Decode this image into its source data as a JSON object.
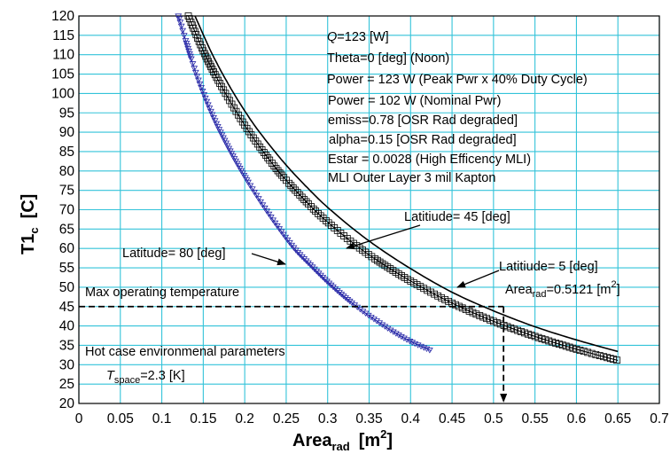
{
  "chart_data": {
    "type": "line",
    "xlabel": "Area",
    "xlabel_sub": "rad",
    "xlabel_unit": "[m",
    "xlabel_unit_sup": "2",
    "xlabel_unit_close": "]",
    "ylabel": "T1",
    "ylabel_sub": "c",
    "ylabel_unit": "[C]",
    "xlim": [
      0,
      0.7
    ],
    "ylim": [
      20,
      120
    ],
    "xticks": [
      0,
      0.05,
      0.1,
      0.15,
      0.2,
      0.25,
      0.3,
      0.35,
      0.4,
      0.45,
      0.5,
      0.55,
      0.6,
      0.65,
      0.7
    ],
    "xtick_labels": [
      "0",
      "0.05",
      "0.1",
      "0.15",
      "0.2",
      "0.25",
      "0.3",
      "0.35",
      "0.4",
      "0.45",
      "0.5",
      "0.55",
      "0.6",
      "0.65",
      "0.7"
    ],
    "yticks": [
      20,
      25,
      30,
      35,
      40,
      45,
      50,
      55,
      60,
      65,
      70,
      75,
      80,
      85,
      90,
      95,
      100,
      105,
      110,
      115,
      120
    ],
    "ytick_labels": [
      "20",
      "25",
      "30",
      "35",
      "40",
      "45",
      "50",
      "55",
      "60",
      "65",
      "70",
      "75",
      "80",
      "85",
      "90",
      "95",
      "100",
      "105",
      "110",
      "115",
      "120"
    ],
    "grid": true,
    "grid_color": "#33c3d9",
    "series": [
      {
        "name": "Latitiude= 5 [deg]",
        "color": "#000000",
        "marker": "none",
        "x": [
          0.14,
          0.16,
          0.18,
          0.2,
          0.22,
          0.25,
          0.28,
          0.3,
          0.33,
          0.36,
          0.4,
          0.45,
          0.5,
          0.55,
          0.6,
          0.65
        ],
        "y": [
          120,
          110.5,
          102.5,
          95.5,
          89.4,
          81.5,
          74.7,
          70.6,
          65.2,
          60.4,
          54.8,
          48.7,
          43.9,
          39.8,
          36.4,
          33.4
        ]
      },
      {
        "name": "Latitiude= 45 [deg]",
        "color": "#000000",
        "marker": "square",
        "x": [
          0.132,
          0.15,
          0.17,
          0.2,
          0.23,
          0.25,
          0.28,
          0.3,
          0.33,
          0.36,
          0.4,
          0.45,
          0.5,
          0.55,
          0.6,
          0.65
        ],
        "y": [
          120,
          111,
          102.6,
          91.8,
          82.8,
          77.6,
          70.8,
          66.8,
          61.5,
          56.9,
          51.6,
          45.9,
          41.2,
          37.3,
          34,
          31.1
        ]
      },
      {
        "name": "Latitude= 80 [deg]",
        "color": "#2a2aa8",
        "marker": "triangle-down",
        "x": [
          0.12,
          0.14,
          0.16,
          0.18,
          0.2,
          0.22,
          0.24,
          0.26,
          0.28,
          0.3,
          0.32,
          0.34,
          0.36,
          0.38,
          0.4,
          0.425
        ],
        "y": [
          120,
          106,
          95,
          86.2,
          78.6,
          71.8,
          65.6,
          60,
          55.6,
          51.4,
          47.6,
          44.2,
          41.2,
          38.4,
          36,
          33.6
        ]
      }
    ],
    "reference_lines": {
      "max_temp_y": 45,
      "area_x": 0.5121
    },
    "annotations": {
      "q_label": "Q",
      "q_value": "=123 [W]",
      "theta": "Theta=0 [deg] (Noon)",
      "power_peak": "Power = 123 W (Peak Pwr x 40% Duty Cycle)",
      "power_nominal": "Power = 102 W (Nominal Pwr)",
      "emiss": "emiss=0.78 [OSR Rad degraded]",
      "alpha": "alpha=0.15 [OSR Rad degraded]",
      "estar": "Estar = 0.0028 (High Efficency MLI)",
      "mli": "MLI Outer Layer 3 mil Kapton",
      "lat45": "Latitiude= 45 [deg]",
      "lat80": "Latitude= 80 [deg]",
      "lat5": "Latitiude= 5 [deg]",
      "area_main": "Area",
      "area_sub": "rad",
      "area_val": "=0.5121 [m",
      "area_sup": "2",
      "area_close": "]",
      "max_temp": "Max operating  temperature",
      "hot_case": "Hot case environmenal parameters",
      "tspace_t": "T",
      "tspace_sub": "space",
      "tspace_val": "=2.3 [K]"
    }
  }
}
